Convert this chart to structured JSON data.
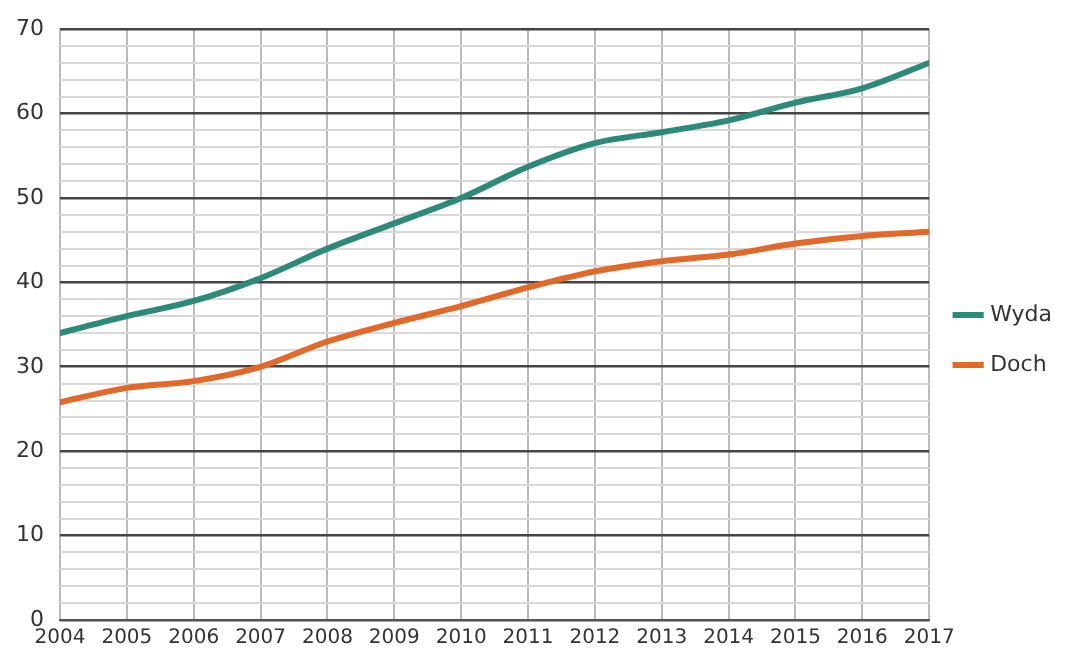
{
  "chart_data": {
    "type": "line",
    "x": [
      2004,
      2005,
      2006,
      2007,
      2008,
      2009,
      2010,
      2011,
      2012,
      2013,
      2014,
      2015,
      2016,
      2017
    ],
    "xlim": [
      2004,
      2017
    ],
    "xticks": [
      2004,
      2005,
      2006,
      2007,
      2008,
      2009,
      2010,
      2011,
      2012,
      2013,
      2014,
      2015,
      2016,
      2017
    ],
    "ylim": [
      0,
      70
    ],
    "yticks": [
      0,
      {
        "value": 2,
        "label": null
      },
      {
        "value": 4,
        "label": null
      },
      {
        "value": 6,
        "label": null
      },
      {
        "value": 8,
        "label": null
      },
      10,
      {
        "value": 12,
        "label": null
      },
      {
        "value": 14,
        "label": null
      },
      {
        "value": 16,
        "label": null
      },
      {
        "value": 18,
        "label": null
      },
      20,
      {
        "value": 22,
        "label": null
      },
      {
        "value": 24,
        "label": null
      },
      {
        "value": 26,
        "label": null
      },
      {
        "value": 28,
        "label": null
      },
      30,
      {
        "value": 32,
        "label": null
      },
      {
        "value": 34,
        "label": null
      },
      {
        "value": 36,
        "label": null
      },
      {
        "value": 38,
        "label": null
      },
      40,
      {
        "value": 42,
        "label": null
      },
      {
        "value": 44,
        "label": null
      },
      {
        "value": 46,
        "label": null
      },
      {
        "value": 48,
        "label": null
      },
      50,
      {
        "value": 52,
        "label": null
      },
      {
        "value": 54,
        "label": null
      },
      {
        "value": 56,
        "label": null
      },
      {
        "value": 58,
        "label": null
      },
      60,
      {
        "value": 62,
        "label": null
      },
      {
        "value": 64,
        "label": null
      },
      {
        "value": 66,
        "label": null
      },
      {
        "value": 68,
        "label": null
      },
      70
    ],
    "grid": true,
    "legend": "right",
    "marker": "none",
    "line_style": "solid",
    "series": [
      {
        "name": "Wyda",
        "color": "#2e8a78",
        "values": [
          34,
          36,
          37.8,
          40.5,
          44,
          47,
          50,
          53.7,
          56.5,
          57.8,
          59.2,
          61.3,
          63,
          66
        ]
      },
      {
        "name": "Doch",
        "color": "#e2692a",
        "values": [
          25.8,
          27.5,
          28.3,
          30,
          33,
          35.2,
          37.2,
          39.4,
          41.3,
          42.5,
          43.3,
          44.6,
          45.5,
          46
        ]
      }
    ]
  }
}
